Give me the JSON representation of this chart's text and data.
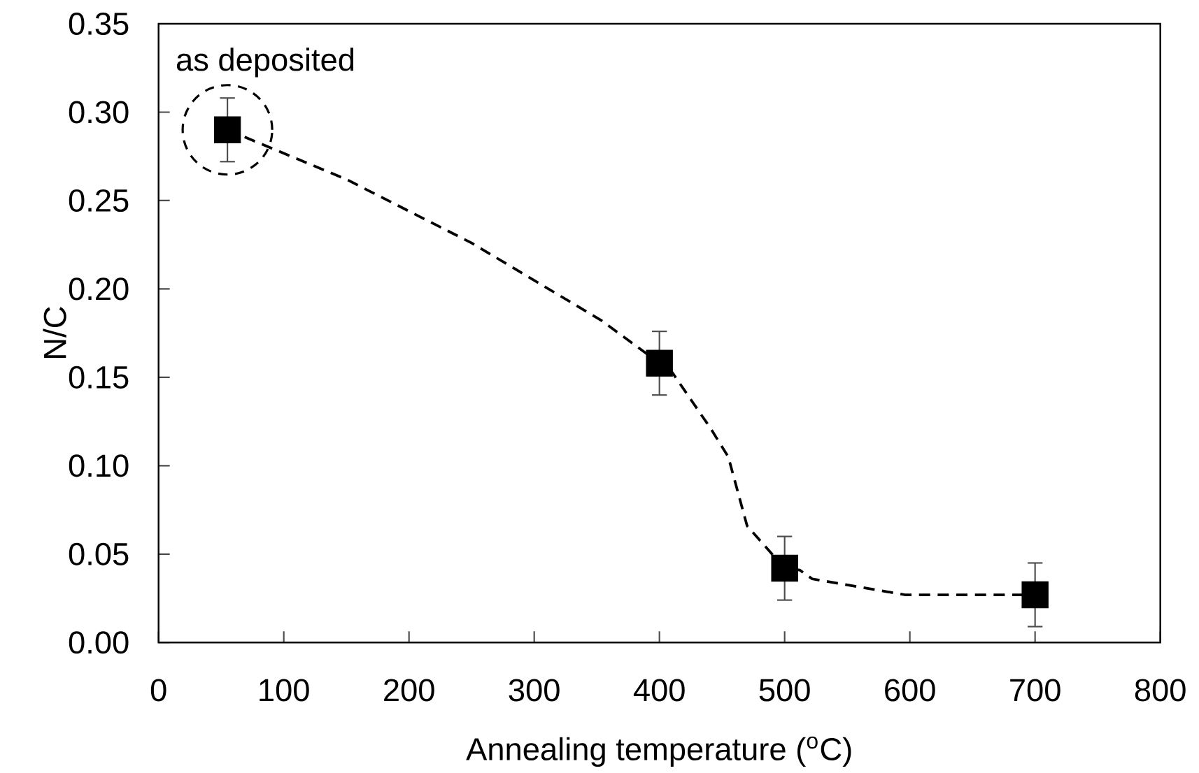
{
  "chart_data": {
    "type": "scatter",
    "xlabel": "Annealing temperature ($^{o}$C)",
    "ylabel": "N/C",
    "xlim": [
      0,
      800
    ],
    "xticks": [
      0,
      100,
      200,
      300,
      400,
      500,
      600,
      700,
      800
    ],
    "ylim": [
      0,
      0.35
    ],
    "yticks": [
      {
        "value": 0,
        "label": "0.00"
      },
      {
        "value": 0.05,
        "label": "0.05"
      },
      {
        "value": 0.1,
        "label": "0.10"
      },
      {
        "value": 0.15,
        "label": "0.15"
      },
      {
        "value": 0.2,
        "label": "0.20"
      },
      {
        "value": 0.25,
        "label": "0.25"
      },
      {
        "value": 0.3,
        "label": "0.30"
      },
      {
        "value": 0.35,
        "label": "0.35"
      }
    ],
    "grid": false,
    "annotations": [
      {
        "text": "as deposited",
        "x": 55,
        "y": 0.29
      }
    ],
    "series": [
      {
        "color": "#000000",
        "marker": "square",
        "x": [
          55,
          400,
          500,
          700
        ],
        "values": [
          0.29,
          0.158,
          0.042,
          0.027
        ],
        "errors": [
          0.018,
          0.018,
          0.018,
          0.018
        ]
      },
      {
        "type": "line",
        "color": "#000000",
        "marker": "none",
        "line_style": "dashed",
        "x": [
          55,
          150,
          250,
          354,
          400,
          410,
          441,
          455,
          470,
          500,
          512,
          522,
          596,
          700
        ],
        "values": [
          0.29,
          0.262,
          0.226,
          0.182,
          0.158,
          0.153,
          0.121,
          0.105,
          0.066,
          0.042,
          0.041,
          0.036,
          0.027,
          0.027
        ]
      }
    ]
  }
}
